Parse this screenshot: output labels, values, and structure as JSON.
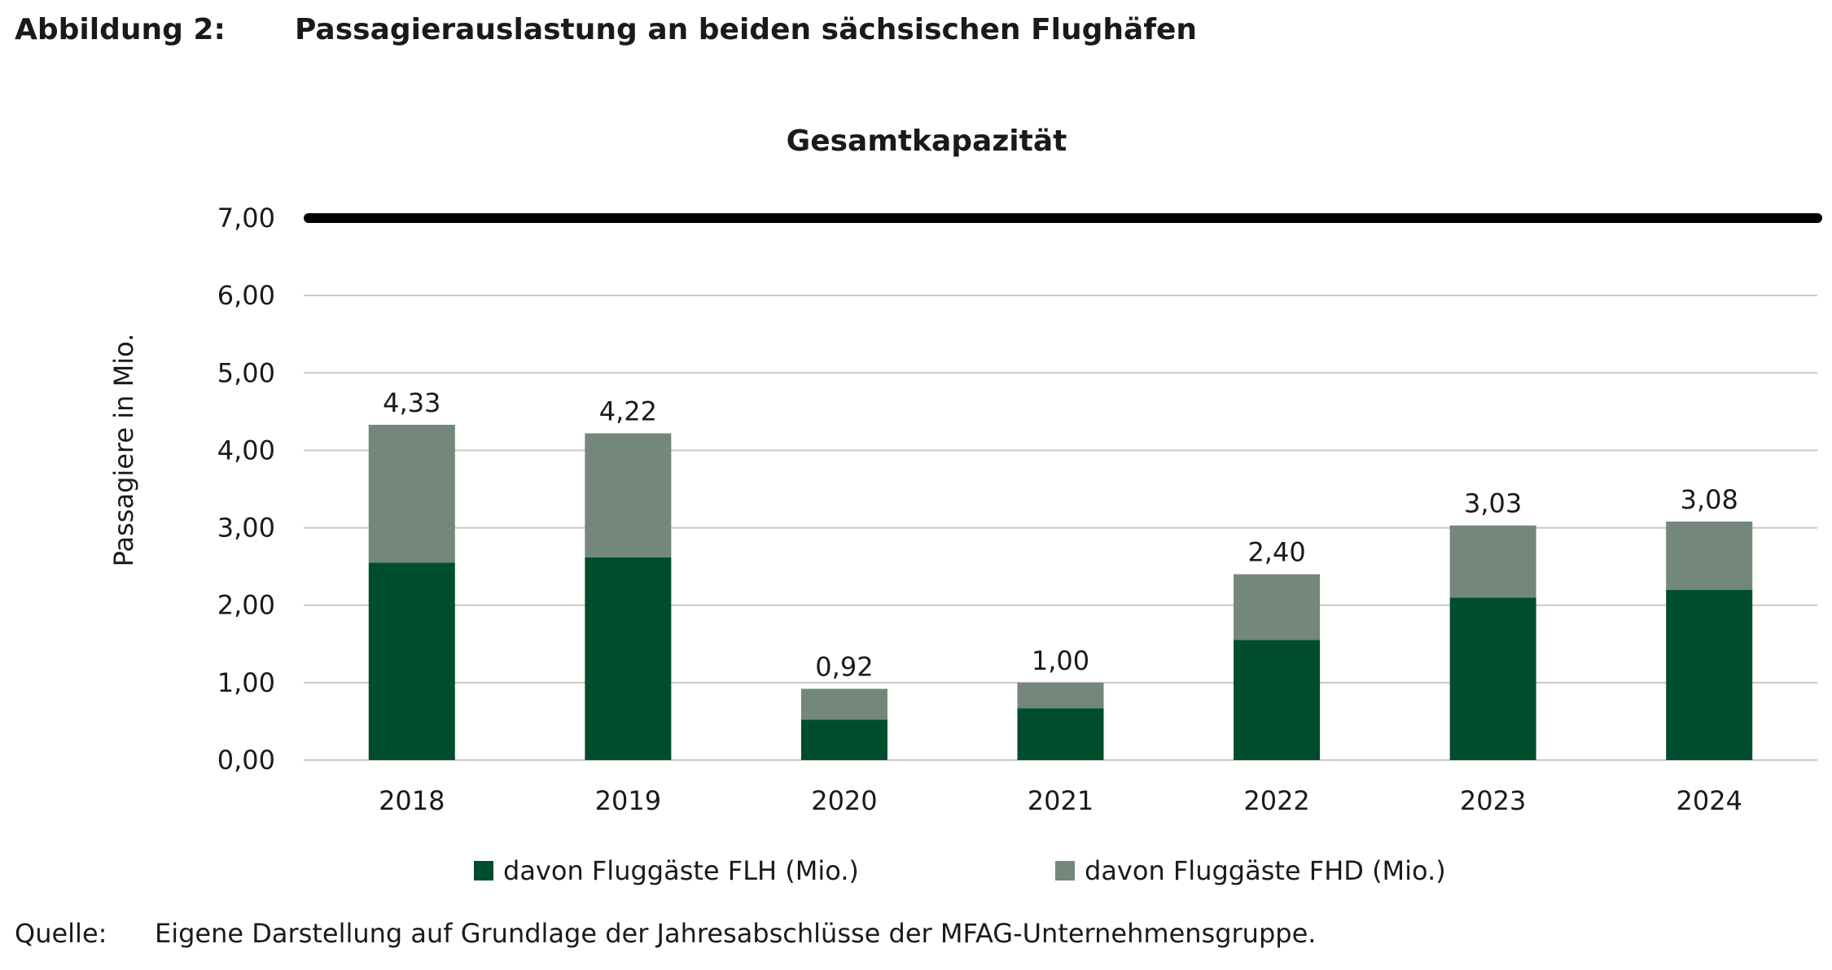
{
  "figure": {
    "label": "Abbildung 2:",
    "title": "Passagierauslastung an beiden sächsischen Flughäfen"
  },
  "source": {
    "label": "Quelle:",
    "text": "Eigene Darstellung auf Grundlage der Jahresabschlüsse der MFAG-Unternehmensgruppe."
  },
  "chart_data": {
    "type": "bar",
    "stacked": true,
    "title": "",
    "capacity_label": "Gesamtkapazität",
    "capacity_value": 7.0,
    "xlabel": "",
    "ylabel": "Passagiere in Mio.",
    "ylim": [
      0,
      7
    ],
    "yticks": [
      "0,00",
      "1,00",
      "2,00",
      "3,00",
      "4,00",
      "5,00",
      "6,00",
      "7,00"
    ],
    "grid": true,
    "legend_position": "bottom",
    "categories": [
      "2018",
      "2019",
      "2020",
      "2021",
      "2022",
      "2023",
      "2024"
    ],
    "series": [
      {
        "name": "davon Fluggäste FLH (Mio.)",
        "color": "#004d2e",
        "values": [
          2.55,
          2.62,
          0.52,
          0.67,
          1.55,
          2.1,
          2.2
        ]
      },
      {
        "name": "davon Fluggäste FHD (Mio.)",
        "color": "#73877a",
        "values": [
          1.78,
          1.6,
          0.4,
          0.33,
          0.85,
          0.93,
          0.88
        ]
      }
    ],
    "totals": [
      "4,33",
      "4,22",
      "0,92",
      "1,00",
      "2,40",
      "3,03",
      "3,08"
    ],
    "colors": {
      "grid": "#c8c8c8",
      "capacity_line": "#000000",
      "text": "#1a1a1a"
    }
  }
}
